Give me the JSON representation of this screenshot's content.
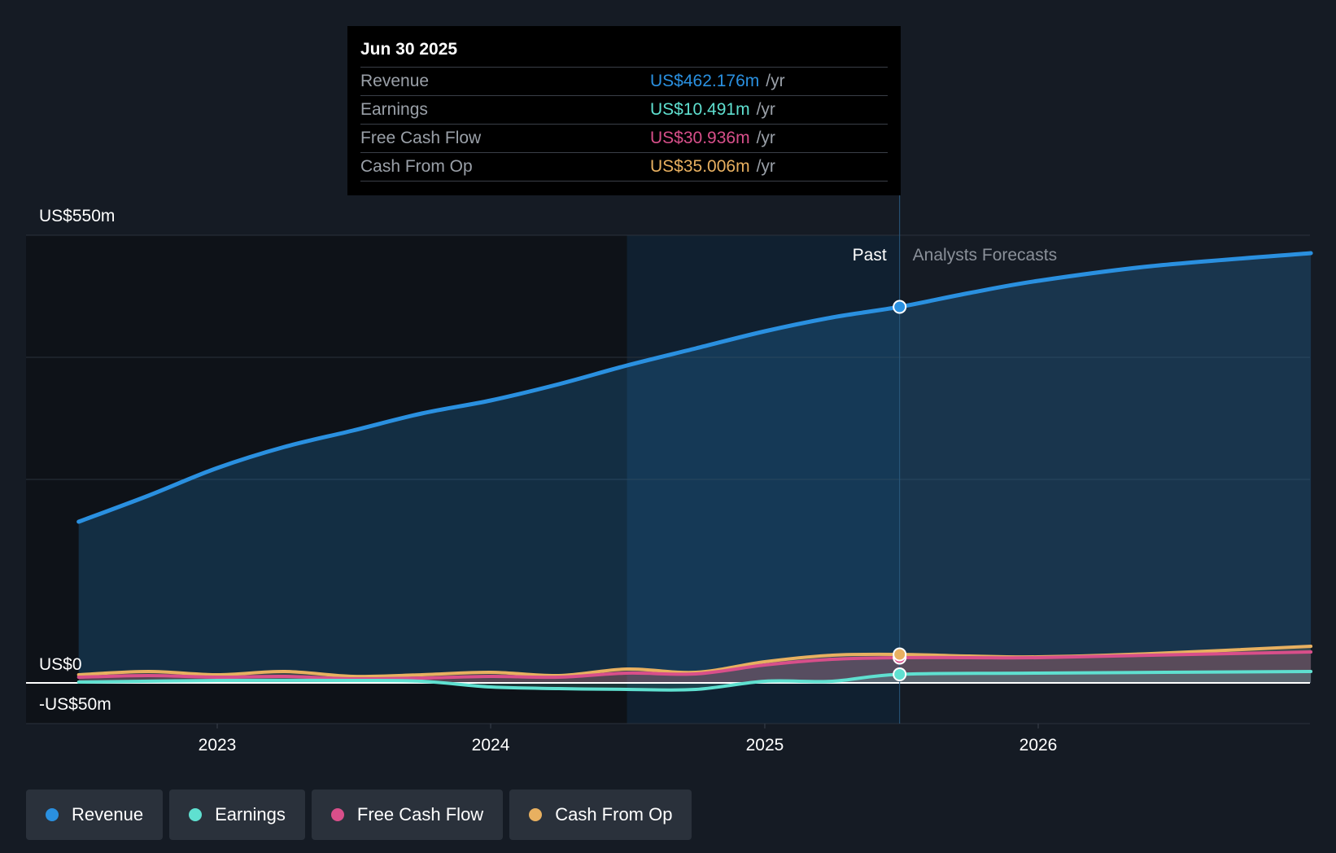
{
  "tooltip": {
    "date": "Jun 30 2025",
    "rows": [
      {
        "label": "Revenue",
        "value": "US$462.176m",
        "unit": "/yr",
        "color": "#2a90e0"
      },
      {
        "label": "Earnings",
        "value": "US$10.491m",
        "unit": "/yr",
        "color": "#5fe0d0"
      },
      {
        "label": "Free Cash Flow",
        "value": "US$30.936m",
        "unit": "/yr",
        "color": "#d84f8a"
      },
      {
        "label": "Cash From Op",
        "value": "US$35.006m",
        "unit": "/yr",
        "color": "#e8b060"
      }
    ]
  },
  "legend": [
    {
      "label": "Revenue",
      "color": "#2a90e0"
    },
    {
      "label": "Earnings",
      "color": "#5fe0d0"
    },
    {
      "label": "Free Cash Flow",
      "color": "#d84f8a"
    },
    {
      "label": "Cash From Op",
      "color": "#e8b060"
    }
  ],
  "chart_data": {
    "type": "area",
    "y_axis_labels": [
      "US$550m",
      "US$0",
      "-US$50m"
    ],
    "ylim": [
      -50,
      550
    ],
    "x_ticks": [
      "2023",
      "2024",
      "2025",
      "2026"
    ],
    "past_label": "Past",
    "forecast_label": "Analysts Forecasts",
    "divider_date": "2025-06-30",
    "series": [
      {
        "name": "Revenue",
        "color": "#2a90e0",
        "points": [
          [
            "2022-06-30",
            198
          ],
          [
            "2022-10-01",
            230
          ],
          [
            "2023-01-01",
            264
          ],
          [
            "2023-04-01",
            290
          ],
          [
            "2023-07-01",
            310
          ],
          [
            "2023-10-01",
            331
          ],
          [
            "2024-01-01",
            347
          ],
          [
            "2024-04-01",
            367
          ],
          [
            "2024-07-01",
            390
          ],
          [
            "2024-10-01",
            411
          ],
          [
            "2025-01-01",
            432
          ],
          [
            "2025-04-01",
            449
          ],
          [
            "2025-06-30",
            462
          ],
          [
            "2025-10-01",
            479
          ],
          [
            "2026-01-01",
            494
          ],
          [
            "2026-06-01",
            512
          ],
          [
            "2026-12-31",
            528
          ]
        ]
      },
      {
        "name": "Earnings",
        "color": "#5fe0d0",
        "points": [
          [
            "2022-06-30",
            1
          ],
          [
            "2023-01-01",
            3
          ],
          [
            "2023-07-01",
            3
          ],
          [
            "2023-10-01",
            2
          ],
          [
            "2024-01-01",
            -5
          ],
          [
            "2024-04-01",
            -7
          ],
          [
            "2024-07-01",
            -8
          ],
          [
            "2024-10-01",
            -8
          ],
          [
            "2025-01-01",
            2
          ],
          [
            "2025-04-01",
            2
          ],
          [
            "2025-06-30",
            10.5
          ],
          [
            "2026-01-01",
            12
          ],
          [
            "2026-12-31",
            14
          ]
        ]
      },
      {
        "name": "Free Cash Flow",
        "color": "#d84f8a",
        "points": [
          [
            "2022-06-30",
            7
          ],
          [
            "2022-10-01",
            9
          ],
          [
            "2023-01-01",
            7
          ],
          [
            "2023-04-01",
            8
          ],
          [
            "2023-07-01",
            5
          ],
          [
            "2023-10-01",
            6
          ],
          [
            "2024-01-01",
            8
          ],
          [
            "2024-04-01",
            7
          ],
          [
            "2024-07-01",
            12
          ],
          [
            "2024-10-01",
            11
          ],
          [
            "2025-01-01",
            22
          ],
          [
            "2025-04-01",
            29
          ],
          [
            "2025-06-30",
            31
          ],
          [
            "2025-10-01",
            31
          ],
          [
            "2026-01-01",
            31
          ],
          [
            "2026-06-01",
            34
          ],
          [
            "2026-12-31",
            38
          ]
        ]
      },
      {
        "name": "Cash From Op",
        "color": "#e8b060",
        "points": [
          [
            "2022-06-30",
            10
          ],
          [
            "2022-10-01",
            14
          ],
          [
            "2023-01-01",
            10
          ],
          [
            "2023-04-01",
            14
          ],
          [
            "2023-07-01",
            8
          ],
          [
            "2023-10-01",
            10
          ],
          [
            "2024-01-01",
            13
          ],
          [
            "2024-04-01",
            9
          ],
          [
            "2024-07-01",
            17
          ],
          [
            "2024-10-01",
            13
          ],
          [
            "2025-01-01",
            26
          ],
          [
            "2025-04-01",
            34
          ],
          [
            "2025-06-30",
            35
          ],
          [
            "2025-10-01",
            33
          ],
          [
            "2026-01-01",
            32
          ],
          [
            "2026-06-01",
            36
          ],
          [
            "2026-12-31",
            45
          ]
        ]
      }
    ]
  }
}
